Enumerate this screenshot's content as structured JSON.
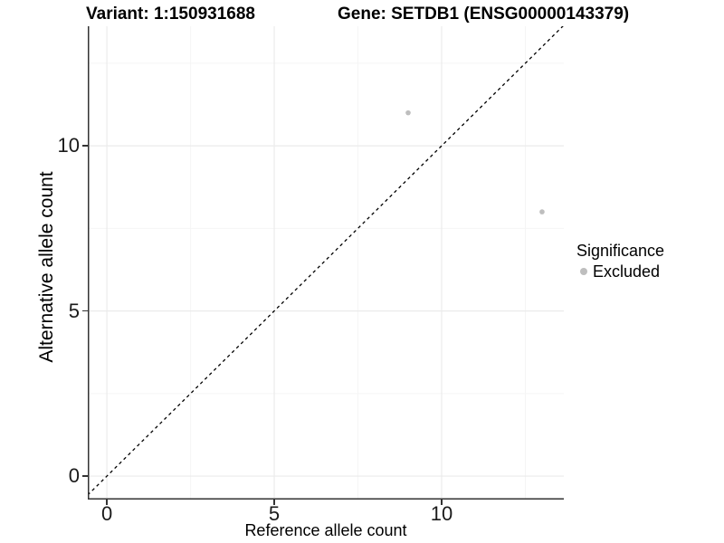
{
  "figure": {
    "titles": {
      "variant": "Variant: 1:150931688",
      "gene": "Gene: SETDB1 (ENSG00000143379)"
    }
  },
  "legend": {
    "title": "Significance",
    "items": [
      {
        "label": "Excluded",
        "color": "#bebebe",
        "marker": "dot"
      }
    ]
  },
  "chart_data": {
    "type": "scatter",
    "title": "Variant: 1:150931688  Gene: SETDB1 (ENSG00000143379)",
    "xlabel": "Reference allele count",
    "ylabel": "Alternative allele count",
    "xlim": [
      -0.57,
      13.65
    ],
    "ylim": [
      -0.71,
      13.62
    ],
    "xticks": [
      0,
      5,
      10
    ],
    "yticks": [
      0,
      5,
      10
    ],
    "grid": {
      "major": [
        0,
        5,
        10
      ],
      "minor": [
        2.5,
        7.5,
        12.5
      ],
      "major_color": "#ebebeb",
      "minor_color": "#f5f5f5"
    },
    "identity_line": {
      "style": "dashed",
      "color": "#000000",
      "from": -0.71,
      "to": 13.65
    },
    "series": [
      {
        "name": "Excluded",
        "color": "#bebebe",
        "points": [
          {
            "x": 9,
            "y": 11
          },
          {
            "x": 13,
            "y": 8
          }
        ]
      }
    ],
    "legend_position": "right",
    "background": "#ffffff",
    "axis_line_color": "#333333"
  }
}
